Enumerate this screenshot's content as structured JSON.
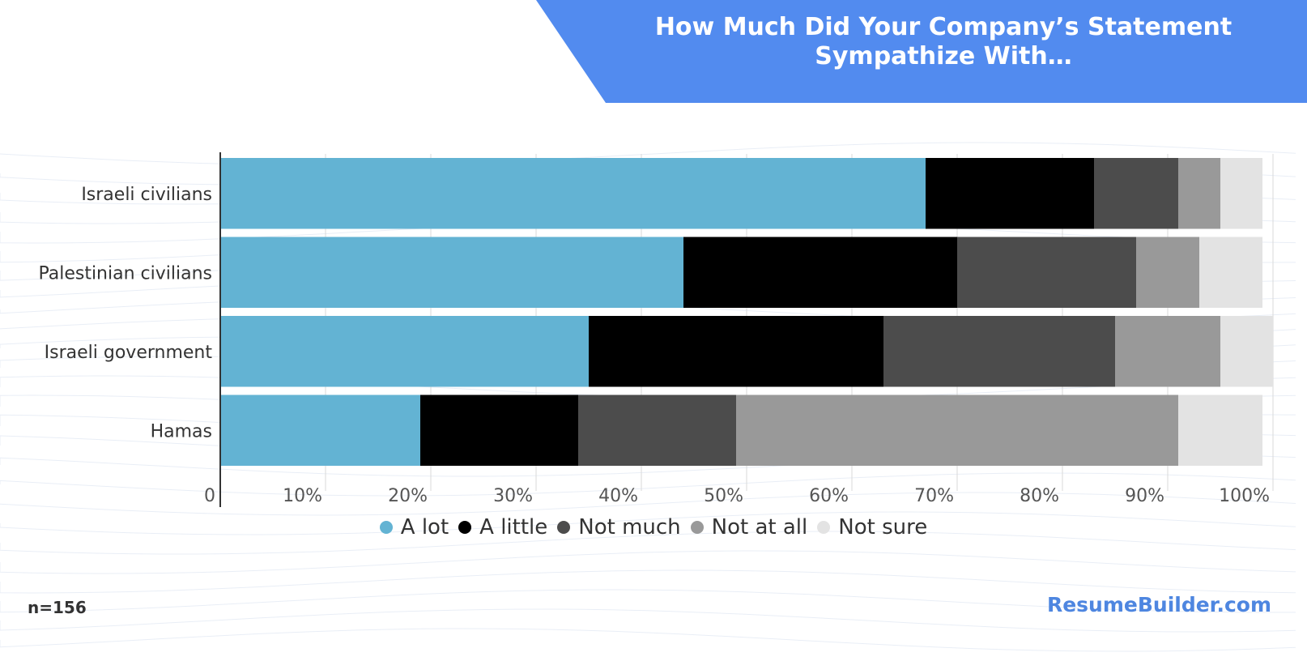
{
  "colors": {
    "banner": "#528bef",
    "title_text": "#ffffff",
    "brand": "#4e86e0",
    "grid": "#d9d9d9",
    "axis": "#333333"
  },
  "title": {
    "line1": "How Much Did Your Company’s Statement",
    "line2": "Sympathize With…"
  },
  "chart_data": {
    "type": "bar",
    "orientation": "horizontal",
    "stacked": true,
    "title": "How Much Did Your Company’s Statement Sympathize With…",
    "categories": [
      "Israeli civilians",
      "Palestinian civilians",
      "Israeli government",
      "Hamas"
    ],
    "series": [
      {
        "name": "A lot",
        "color": "#63b3d3",
        "values": [
          67,
          44,
          35,
          19
        ]
      },
      {
        "name": "A little",
        "color": "#000000",
        "values": [
          16,
          26,
          28,
          15
        ]
      },
      {
        "name": "Not much",
        "color": "#4c4c4c",
        "values": [
          8,
          17,
          22,
          15
        ]
      },
      {
        "name": "Not at all",
        "color": "#999999",
        "values": [
          4,
          6,
          10,
          42
        ]
      },
      {
        "name": "Not sure",
        "color": "#e3e3e3",
        "values": [
          4,
          6,
          5,
          8
        ]
      }
    ],
    "xlim": [
      0,
      100
    ],
    "xticks": [
      {
        "value": 0,
        "label": "0"
      },
      {
        "value": 10,
        "label": "10%"
      },
      {
        "value": 20,
        "label": "20%"
      },
      {
        "value": 30,
        "label": "30%"
      },
      {
        "value": 40,
        "label": "40%"
      },
      {
        "value": 50,
        "label": "50%"
      },
      {
        "value": 60,
        "label": "60%"
      },
      {
        "value": 70,
        "label": "70%"
      },
      {
        "value": 80,
        "label": "80%"
      },
      {
        "value": 90,
        "label": "90%"
      },
      {
        "value": 100,
        "label": "100%"
      }
    ],
    "xlabel": "",
    "ylabel": "",
    "grid": true,
    "legend_position": "bottom"
  },
  "footer": {
    "sample_note": "n=156",
    "brand": "ResumeBuilder.com"
  }
}
